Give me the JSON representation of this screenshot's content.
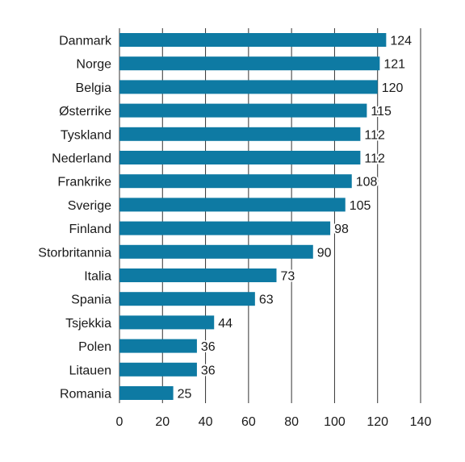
{
  "chart_data": {
    "type": "bar",
    "orientation": "horizontal",
    "categories": [
      "Danmark",
      "Norge",
      "Belgia",
      "Østerrike",
      "Tyskland",
      "Nederland",
      "Frankrike",
      "Sverige",
      "Finland",
      "Storbritannia",
      "Italia",
      "Spania",
      "Tsjekkia",
      "Polen",
      "Litauen",
      "Romania"
    ],
    "values": [
      124,
      121,
      120,
      115,
      112,
      112,
      108,
      105,
      98,
      90,
      73,
      63,
      44,
      36,
      36,
      25
    ],
    "value_labels": [
      "124",
      "121",
      "120",
      "115",
      "112",
      "112",
      "108",
      "105",
      "98",
      "90",
      "73",
      "63",
      "44",
      "36",
      "36",
      "25"
    ],
    "xlim": [
      0,
      140
    ],
    "xticks": [
      0,
      20,
      40,
      60,
      80,
      100,
      120,
      140
    ],
    "xtick_labels": [
      "0",
      "20",
      "40",
      "60",
      "80",
      "100",
      "120",
      "140"
    ],
    "grid": "vertical",
    "bar_color": "#0e7aa3",
    "grid_color": "#333333",
    "title": "",
    "xlabel": "",
    "ylabel": ""
  }
}
